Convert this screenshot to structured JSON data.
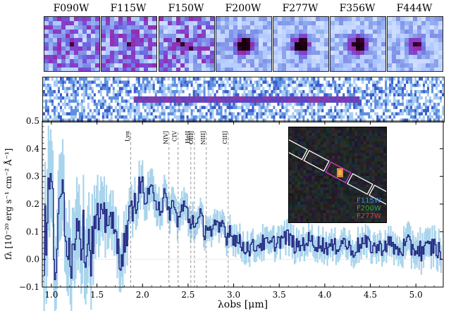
{
  "filters": [
    "F090W",
    "F115W",
    "F150W",
    "F200W",
    "F277W",
    "F356W",
    "F444W"
  ],
  "inset_legend": [
    {
      "label": "F115W",
      "color": "#3e8fe0"
    },
    {
      "label": "F200W",
      "color": "#3aa23a"
    },
    {
      "label": "F277W",
      "color": "#e03a3a"
    }
  ],
  "chart_data": {
    "type": "line",
    "xlabel": "λobs [μm]",
    "ylabel": "fλ [10⁻²⁰ erg s⁻¹ cm⁻² Å⁻¹]",
    "xlim": [
      0.9,
      5.3
    ],
    "ylim": [
      -0.1,
      0.5
    ],
    "xticks": [
      "1.0",
      "1.5",
      "2.0",
      "2.5",
      "3.0",
      "3.5",
      "4.0",
      "4.5",
      "5.0"
    ],
    "xtick_values": [
      1.0,
      1.5,
      2.0,
      2.5,
      3.0,
      3.5,
      4.0,
      4.5,
      5.0
    ],
    "yticks": [
      "−0.1",
      "0.0",
      "0.1",
      "0.2",
      "0.3",
      "0.4",
      "0.5"
    ],
    "ytick_values": [
      -0.1,
      0.0,
      0.1,
      0.2,
      0.3,
      0.4,
      0.5
    ],
    "emission_lines": [
      {
        "label": "Lyα",
        "x": 1.87
      },
      {
        "label": "NIV]",
        "x": 2.29
      },
      {
        "label": "CIV",
        "x": 2.39
      },
      {
        "label": "HeII",
        "x": 2.53
      },
      {
        "label": "OIII]",
        "x": 2.57
      },
      {
        "label": "NIII]",
        "x": 2.7
      },
      {
        "label": "CIII]",
        "x": 2.94
      }
    ],
    "spectrum_color": "#1a1a7a",
    "error_color": "#a8d4ec",
    "series": [
      {
        "x": [
          0.92,
          0.96,
          1.0,
          1.04,
          1.08,
          1.12,
          1.16,
          1.2,
          1.24,
          1.28,
          1.32,
          1.36,
          1.4,
          1.44,
          1.48,
          1.52,
          1.56,
          1.6,
          1.64,
          1.68,
          1.72,
          1.76,
          1.8,
          1.84,
          1.88,
          1.92,
          1.96,
          2.0,
          2.04,
          2.08,
          2.12,
          2.16,
          2.2,
          2.24,
          2.28,
          2.32,
          2.36,
          2.4,
          2.44,
          2.48,
          2.52,
          2.56,
          2.6,
          2.64,
          2.68,
          2.72,
          2.76,
          2.8,
          2.84,
          2.88,
          2.92,
          2.96,
          3.0,
          3.1,
          3.2,
          3.3,
          3.4,
          3.5,
          3.6,
          3.7,
          3.8,
          3.9,
          4.0,
          4.1,
          4.2,
          4.3,
          4.4,
          4.5,
          4.6,
          4.7,
          4.8,
          4.9,
          5.0,
          5.1,
          5.2,
          5.28
        ],
        "values": [
          0.03,
          0.18,
          0.29,
          -0.02,
          0.08,
          0.27,
          0.12,
          0.05,
          0.0,
          0.21,
          0.1,
          0.07,
          0.09,
          0.03,
          0.12,
          0.14,
          0.11,
          0.15,
          0.18,
          0.1,
          0.05,
          0.02,
          0.04,
          0.12,
          0.18,
          0.2,
          0.25,
          0.27,
          0.2,
          0.22,
          0.26,
          0.22,
          0.18,
          0.23,
          0.16,
          0.2,
          0.17,
          0.14,
          0.19,
          0.18,
          0.13,
          0.15,
          0.12,
          0.16,
          0.1,
          0.13,
          0.09,
          0.12,
          0.1,
          0.14,
          0.08,
          0.11,
          0.08,
          0.05,
          0.04,
          0.06,
          0.05,
          0.07,
          0.08,
          0.04,
          0.07,
          0.06,
          0.05,
          0.04,
          0.07,
          0.03,
          0.06,
          0.05,
          0.04,
          0.06,
          0.03,
          0.05,
          0.04,
          0.03,
          0.05,
          0.02
        ],
        "errors": [
          0.14,
          0.2,
          0.15,
          0.12,
          0.16,
          0.15,
          0.12,
          0.14,
          0.13,
          0.15,
          0.12,
          0.13,
          0.14,
          0.12,
          0.11,
          0.1,
          0.1,
          0.09,
          0.08,
          0.08,
          0.09,
          0.08,
          0.08,
          0.07,
          0.06,
          0.06,
          0.06,
          0.06,
          0.06,
          0.06,
          0.06,
          0.06,
          0.05,
          0.05,
          0.05,
          0.05,
          0.05,
          0.05,
          0.05,
          0.05,
          0.05,
          0.05,
          0.04,
          0.04,
          0.04,
          0.04,
          0.04,
          0.04,
          0.04,
          0.04,
          0.04,
          0.04,
          0.04,
          0.04,
          0.04,
          0.04,
          0.04,
          0.04,
          0.04,
          0.04,
          0.04,
          0.04,
          0.04,
          0.04,
          0.04,
          0.04,
          0.04,
          0.04,
          0.04,
          0.04,
          0.04,
          0.05,
          0.05,
          0.05,
          0.05,
          0.05
        ]
      }
    ]
  }
}
